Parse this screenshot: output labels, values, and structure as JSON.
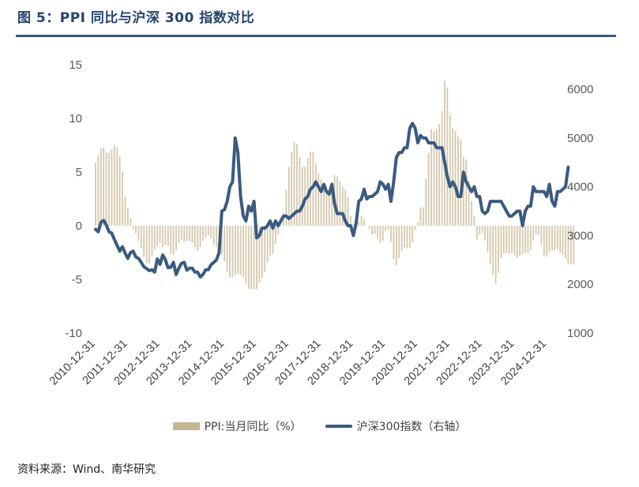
{
  "header": {
    "title": "图 5：PPI 同比与沪深 300 指数对比"
  },
  "footer": {
    "source": "资料来源：Wind、南华研究"
  },
  "chart_data": {
    "type": "bar+line",
    "title": "图 5：PPI 同比与沪深 300 指数对比",
    "x_tick_labels": [
      "2010-12-31",
      "2011-12-31",
      "2012-12-31",
      "2013-12-31",
      "2014-12-31",
      "2015-12-31",
      "2016-12-31",
      "2017-12-31",
      "2018-12-31",
      "2019-12-31",
      "2020-12-31",
      "2021-12-31",
      "2022-12-31",
      "2023-12-31",
      "2024-12-31"
    ],
    "left_axis": {
      "ylim": [
        -10,
        15
      ],
      "ticks": [
        "15",
        "10",
        "5",
        "0",
        "-5",
        "-10"
      ]
    },
    "right_axis": {
      "ylim": [
        1000,
        6500
      ],
      "ticks": [
        "6000",
        "5000",
        "4000",
        "3000",
        "2000",
        "1000"
      ]
    },
    "legend_position": "bottom",
    "grid": false,
    "series": [
      {
        "name": "PPI:当月同比（%）",
        "type": "bar",
        "axis": "left",
        "color": "#c5b592",
        "x_start": "2010-12",
        "frequency": "monthly",
        "values": [
          5.9,
          6.6,
          7.2,
          7.3,
          6.8,
          6.8,
          7.1,
          7.5,
          7.3,
          6.5,
          5.0,
          2.7,
          1.7,
          0.7,
          -0.3,
          -0.7,
          -1.4,
          -2.1,
          -2.9,
          -3.5,
          -3.5,
          -2.8,
          -2.2,
          -1.9,
          -1.6,
          -2.0,
          -1.8,
          -1.9,
          -2.6,
          -2.7,
          -2.3,
          -1.6,
          -1.3,
          -1.5,
          -1.4,
          -1.4,
          -1.6,
          -2.0,
          -2.3,
          -2.0,
          -1.4,
          -1.1,
          -0.9,
          -1.2,
          -1.8,
          -2.0,
          -2.2,
          -2.7,
          -3.3,
          -4.3,
          -4.8,
          -4.8,
          -4.6,
          -4.5,
          -4.6,
          -4.8,
          -5.4,
          -5.9,
          -5.9,
          -5.9,
          -5.9,
          -5.3,
          -4.9,
          -4.3,
          -3.4,
          -2.8,
          -2.6,
          -1.7,
          -0.8,
          0.1,
          1.2,
          3.3,
          5.5,
          6.9,
          7.8,
          7.6,
          6.4,
          5.5,
          5.5,
          6.3,
          6.9,
          6.9,
          5.8,
          4.9,
          4.3,
          3.7,
          3.1,
          3.4,
          4.1,
          4.7,
          4.6,
          4.1,
          3.6,
          3.3,
          2.7,
          0.9,
          0.1,
          0.1,
          0.4,
          0.9,
          0.6,
          0.0,
          -0.3,
          -0.8,
          -0.8,
          -1.2,
          -1.6,
          -1.4,
          -0.5,
          -0.4,
          -1.5,
          -3.1,
          -3.7,
          -3.0,
          -2.4,
          -2.0,
          -2.1,
          -2.1,
          -1.5,
          -0.4,
          0.3,
          1.7,
          1.7,
          4.4,
          6.8,
          9.0,
          8.8,
          9.0,
          9.5,
          10.7,
          13.5,
          12.9,
          10.3,
          9.1,
          8.8,
          8.3,
          8.0,
          6.4,
          6.1,
          4.2,
          2.3,
          0.9,
          -1.3,
          -0.8,
          -0.7,
          -1.4,
          -2.5,
          -3.6,
          -4.6,
          -5.4,
          -4.4,
          -3.0,
          -2.6,
          -2.5,
          -2.6,
          -2.5,
          -2.7,
          -3.0,
          -2.8,
          -2.7,
          -2.5,
          -2.5,
          -2.3,
          -1.4,
          -0.8,
          -0.8,
          -1.8,
          -2.8,
          -2.9,
          -2.5,
          -2.3,
          -2.3,
          -2.2,
          -2.5,
          -2.7,
          -3.0,
          -3.6,
          -3.6,
          -3.6
        ]
      },
      {
        "name": "沪深300指数（右轴）",
        "type": "line",
        "axis": "right",
        "color": "#3a5a80",
        "x_start": "2010-12",
        "frequency": "monthly",
        "values": [
          3128,
          3077,
          3270,
          3310,
          3215,
          3080,
          3050,
          2920,
          2800,
          2680,
          2770,
          2640,
          2530,
          2650,
          2680,
          2560,
          2530,
          2450,
          2360,
          2320,
          2280,
          2300,
          2250,
          2520,
          2410,
          2600,
          2500,
          2340,
          2350,
          2450,
          2200,
          2330,
          2430,
          2450,
          2290,
          2330,
          2330,
          2250,
          2250,
          2150,
          2200,
          2300,
          2300,
          2400,
          2450,
          2500,
          2650,
          3500,
          3530,
          3700,
          4000,
          4100,
          5000,
          4700,
          3800,
          3400,
          3300,
          3600,
          3500,
          3700,
          2950,
          3000,
          3150,
          3150,
          3200,
          3300,
          3150,
          3300,
          3200,
          3300,
          3400,
          3400,
          3350,
          3400,
          3450,
          3500,
          3500,
          3600,
          3750,
          3800,
          3950,
          4000,
          4100,
          4000,
          3900,
          4050,
          3900,
          3850,
          4050,
          3650,
          3450,
          3450,
          3450,
          3300,
          3200,
          3200,
          3000,
          3250,
          3700,
          3750,
          3950,
          3750,
          3800,
          3800,
          3850,
          3900,
          4100,
          4050,
          3950,
          4050,
          3700,
          4100,
          4600,
          4700,
          4700,
          4800,
          4800,
          5200,
          5300,
          5200,
          4900,
          5050,
          5000,
          5000,
          4900,
          4900,
          4900,
          4800,
          4800,
          4800,
          4500,
          4200,
          4000,
          4100,
          4000,
          3800,
          3800,
          4300,
          4100,
          4000,
          3900,
          4000,
          3800,
          3800,
          3500,
          3450,
          3500,
          3700,
          3700,
          3700,
          3700,
          3700,
          3600,
          3500,
          3400,
          3400,
          3450,
          3500,
          3500,
          3200,
          3500,
          3600,
          3600,
          4000,
          3900,
          3900,
          3900,
          3900,
          3800,
          4050,
          3700,
          3600,
          3900,
          3900,
          3950,
          4000,
          4400
        ]
      }
    ]
  }
}
